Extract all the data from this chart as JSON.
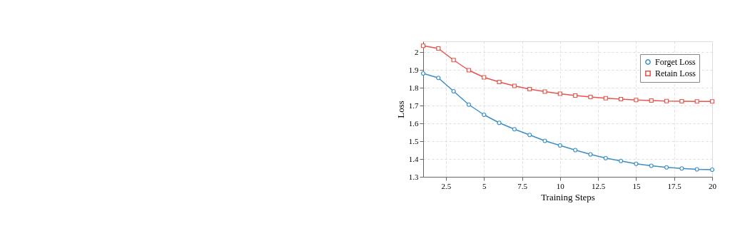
{
  "chart_data": {
    "type": "line",
    "xlabel": "Training Steps",
    "ylabel": "Loss",
    "x": [
      1,
      2,
      3,
      4,
      5,
      6,
      7,
      8,
      9,
      10,
      11,
      12,
      13,
      14,
      15,
      16,
      17,
      18,
      19,
      20
    ],
    "series": [
      {
        "name": "Forget Loss",
        "color": "#3b8fc2",
        "marker": "circle",
        "values": [
          1.88,
          1.855,
          1.78,
          1.705,
          1.648,
          1.603,
          1.567,
          1.535,
          1.502,
          1.476,
          1.45,
          1.426,
          1.405,
          1.389,
          1.373,
          1.362,
          1.353,
          1.347,
          1.342,
          1.34
        ]
      },
      {
        "name": "Retain Loss",
        "color": "#e8534a",
        "marker": "square",
        "values": [
          2.035,
          2.02,
          1.955,
          1.898,
          1.858,
          1.832,
          1.81,
          1.792,
          1.778,
          1.766,
          1.756,
          1.748,
          1.741,
          1.736,
          1.731,
          1.728,
          1.725,
          1.724,
          1.723,
          1.723
        ]
      }
    ],
    "xlim": [
      1,
      20
    ],
    "xticks": [
      2.5,
      5,
      7.5,
      10,
      12.5,
      15,
      17.5,
      20
    ],
    "ylim": [
      1.3,
      2.06
    ],
    "yticks": [
      1.3,
      1.4,
      1.5,
      1.6,
      1.7,
      1.8,
      1.9,
      2
    ],
    "grid": true,
    "legend": "top right",
    "line_style": "solid"
  }
}
